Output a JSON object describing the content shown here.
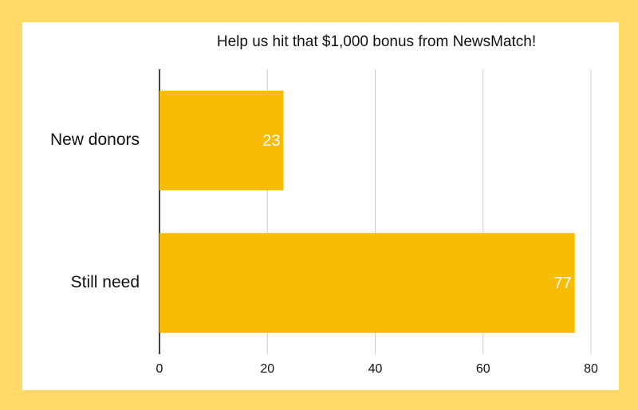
{
  "chart_data": {
    "type": "bar",
    "horizontal": true,
    "title": "Help us hit that $1,000 bonus from NewsMatch!",
    "categories": [
      "New donors",
      "Still need"
    ],
    "values": [
      23,
      77
    ],
    "color": "#fabb05",
    "xlim": [
      0,
      80
    ],
    "xticks": [
      0,
      20,
      40,
      60,
      80
    ],
    "grid": true
  }
}
